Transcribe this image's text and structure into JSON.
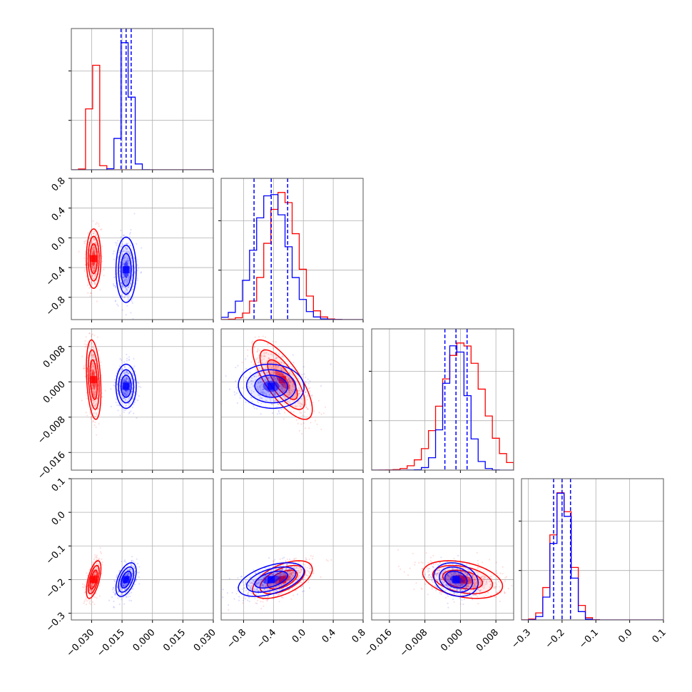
{
  "chart_data": {
    "type": "corner",
    "n_params": 4,
    "param_ranges": [
      [
        -0.04,
        0.03
      ],
      [
        -1.1,
        0.8
      ],
      [
        -0.02,
        0.012
      ],
      [
        -0.32,
        0.1
      ]
    ],
    "x_ticks": [
      [
        "−0.030",
        "−0.015",
        "0.000",
        "0.015",
        "0.030"
      ],
      [
        "−0.8",
        "−0.4",
        "0.0",
        "0.4",
        "0.8"
      ],
      [
        "−0.016",
        "−0.008",
        "0.000",
        "0.008"
      ],
      [
        "−0.3",
        "−0.2",
        "−0.1",
        "0.0",
        "0.1"
      ]
    ],
    "x_tick_values": [
      [
        -0.03,
        -0.015,
        0.0,
        0.015,
        0.03
      ],
      [
        -0.8,
        -0.4,
        0.0,
        0.4,
        0.8
      ],
      [
        -0.016,
        -0.008,
        0.0,
        0.008
      ],
      [
        -0.3,
        -0.2,
        -0.1,
        0.0,
        0.1
      ]
    ],
    "y_ticks": {
      "1": [
        "0.8",
        "0.4",
        "0.0",
        "−0.4",
        "−0.8"
      ],
      "2": [
        "0.008",
        "0.000",
        "−0.008",
        "−0.016"
      ],
      "3": [
        "0.1",
        "0.0",
        "−0.1",
        "−0.2",
        "−0.3"
      ]
    },
    "y_tick_values": {
      "1": [
        0.8,
        0.4,
        0.0,
        -0.4,
        -0.8
      ],
      "2": [
        0.008,
        0.0,
        -0.008,
        -0.016
      ],
      "3": [
        0.1,
        0.0,
        -0.1,
        -0.2,
        -0.3
      ]
    },
    "grid": true,
    "series": [
      {
        "color": "#ff0000",
        "mean": [
          -0.029,
          -0.28,
          0.0005,
          -0.2
        ],
        "sd": [
          0.0018,
          0.2,
          0.0045,
          0.028
        ],
        "corr": {
          "0-1": 0.0,
          "0-2": -0.3,
          "0-3": 0.6,
          "1-2": -0.75,
          "1-3": 0.55,
          "2-3": -0.35
        }
      },
      {
        "color": "#0000ff",
        "mean": [
          -0.013,
          -0.43,
          -0.001,
          -0.2
        ],
        "sd": [
          0.0025,
          0.22,
          0.0025,
          0.025
        ],
        "corr": {
          "0-1": 0.0,
          "0-2": 0.0,
          "0-3": 0.5,
          "1-2": -0.05,
          "1-3": 0.5,
          "2-3": -0.2
        }
      }
    ],
    "quantile_lines": {
      "color": "#0000ff",
      "style": "dashed",
      "values": [
        [
          -0.0155,
          -0.013,
          -0.0105
        ],
        [
          -0.66,
          -0.43,
          -0.21
        ],
        [
          -0.0035,
          -0.001,
          0.0015
        ],
        [
          -0.225,
          -0.2,
          -0.175
        ]
      ]
    }
  }
}
